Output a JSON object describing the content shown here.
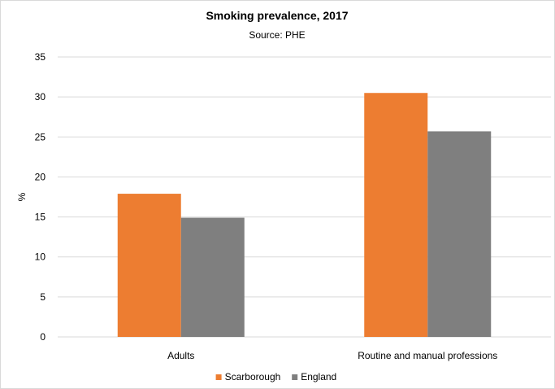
{
  "chart_data": {
    "type": "bar",
    "title": "Smoking prevalence, 2017",
    "subtitle": "Source: PHE",
    "xlabel": "",
    "ylabel": "%",
    "categories": [
      "Adults",
      "Routine and manual professions"
    ],
    "series": [
      {
        "name": "Scarborough",
        "values": [
          17.9,
          30.5
        ],
        "color": "#ed7d31"
      },
      {
        "name": "England",
        "values": [
          14.9,
          25.7
        ],
        "color": "#7f7f7f"
      }
    ],
    "ylim": [
      0,
      35
    ],
    "yticks": [
      0,
      5,
      10,
      15,
      20,
      25,
      30,
      35
    ],
    "grid": true,
    "legend_position": "bottom"
  }
}
